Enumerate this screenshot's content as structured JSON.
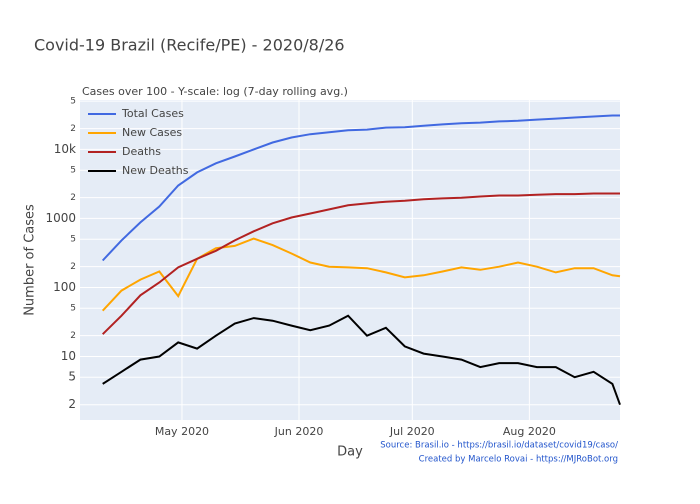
{
  "chart_data": {
    "type": "line",
    "title": "Covid-19 Brazil (Recife/PE) - 2020/8/26",
    "subtitle": "Cases over 100 - Y-scale: log (7-day rolling avg.)",
    "x_label": "Day",
    "y_label": "Number of Cases",
    "annotations": [
      "Source: Brasil.io - https://brasil.io/dataset/covid19/caso/",
      "Created by Marcelo Rovai - https://MJRoBot.org"
    ],
    "yscale": "log",
    "grid": true,
    "legend": "top-left",
    "x": [
      "2020-04-10",
      "2020-04-15",
      "2020-04-20",
      "2020-04-25",
      "2020-04-30",
      "2020-05-05",
      "2020-05-10",
      "2020-05-15",
      "2020-05-20",
      "2020-05-25",
      "2020-05-30",
      "2020-06-04",
      "2020-06-09",
      "2020-06-14",
      "2020-06-19",
      "2020-06-24",
      "2020-06-29",
      "2020-07-04",
      "2020-07-09",
      "2020-07-14",
      "2020-07-19",
      "2020-07-24",
      "2020-07-29",
      "2020-08-03",
      "2020-08-08",
      "2020-08-13",
      "2020-08-18",
      "2020-08-23",
      "2020-08-25"
    ],
    "xlim": [
      "2020-04-04",
      "2020-08-25"
    ],
    "xticks": [
      {
        "value": "2020-05-01",
        "label": "May 2020"
      },
      {
        "value": "2020-06-01",
        "label": "Jun 2020"
      },
      {
        "value": "2020-07-01",
        "label": "Jul 2020"
      },
      {
        "value": "2020-08-01",
        "label": "Aug 2020"
      }
    ],
    "ylim": [
      1.2,
      52000
    ],
    "yticks": [
      2,
      5,
      10,
      {
        "value": 20,
        "label": "2"
      },
      {
        "value": 50,
        "label": "5"
      },
      100,
      {
        "value": 200,
        "label": "2"
      },
      {
        "value": 500,
        "label": "5"
      },
      1000,
      {
        "value": 2000,
        "label": "2"
      },
      {
        "value": 5000,
        "label": "5"
      },
      {
        "value": 10000,
        "label": "10k"
      },
      {
        "value": 20000,
        "label": "2"
      },
      {
        "value": 50000,
        "label": "5"
      }
    ],
    "series": [
      {
        "name": "Total Cases",
        "color": "#4169e1",
        "values": [
          246,
          480,
          875,
          1490,
          3000,
          4650,
          6300,
          7900,
          10000,
          12600,
          14900,
          16600,
          17700,
          19000,
          19400,
          20700,
          21000,
          22000,
          23000,
          24000,
          24500,
          25500,
          26000,
          27000,
          28000,
          29000,
          30000,
          31000,
          31000
        ]
      },
      {
        "name": "New Cases",
        "color": "#ffa500",
        "values": [
          46,
          90,
          130,
          170,
          75,
          260,
          370,
          400,
          510,
          410,
          310,
          230,
          200,
          195,
          190,
          165,
          140,
          150,
          170,
          195,
          180,
          200,
          230,
          200,
          165,
          190,
          190,
          150,
          145
        ]
      },
      {
        "name": "Deaths",
        "color": "#b22222",
        "values": [
          21,
          39,
          77,
          118,
          195,
          260,
          340,
          480,
          650,
          850,
          1030,
          1180,
          1350,
          1550,
          1650,
          1750,
          1800,
          1900,
          1950,
          2000,
          2080,
          2150,
          2150,
          2200,
          2250,
          2250,
          2300,
          2300,
          2300
        ]
      },
      {
        "name": "New Deaths",
        "color": "#000000",
        "values": [
          4,
          6,
          9,
          10,
          16,
          13,
          20,
          30,
          36,
          33,
          28,
          24,
          28,
          39,
          20,
          26,
          14,
          11,
          10,
          9,
          7,
          8,
          8,
          7,
          7,
          5,
          6,
          4,
          2
        ]
      }
    ]
  }
}
